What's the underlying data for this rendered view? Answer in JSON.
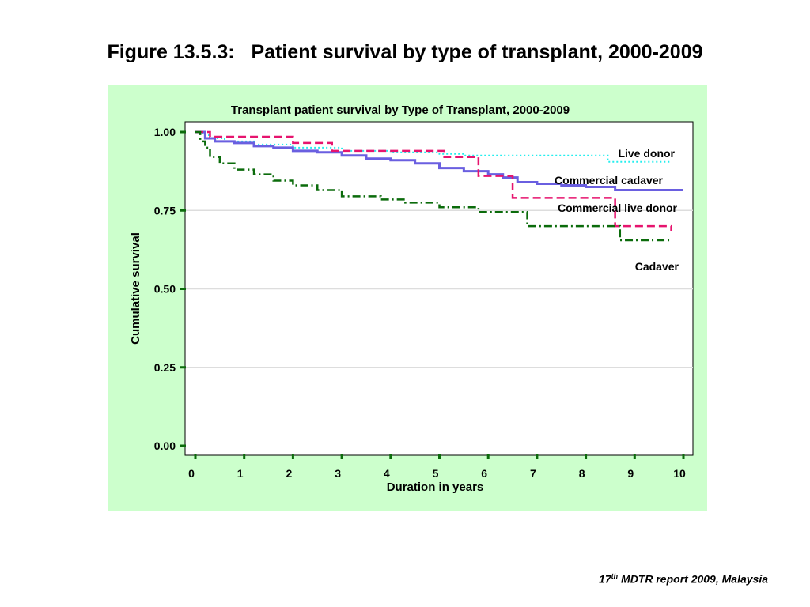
{
  "slide": {
    "title": "Figure 13.5.3:   Patient survival by type of transplant, 2000-2009",
    "footer_sup": "th",
    "footer_pre": "17",
    "footer_post": " MDTR report 2009, Malaysia"
  },
  "colors": {
    "panel_bg": "#ccffcc",
    "live_donor": "#22eeee",
    "commercial_cadaver": "#6a5fe0",
    "commercial_live_donor": "#e6146e",
    "cadaver": "#0b6b0b",
    "axis_ticks": "#0b6b0b"
  },
  "chart_data": {
    "type": "line",
    "title": "Transplant patient survival by Type of Transplant, 2000-2009",
    "xlabel": "Duration in years",
    "ylabel": "Cumulative survival",
    "xlim": [
      0,
      10
    ],
    "ylim": [
      0,
      1
    ],
    "x_ticks": [
      "0",
      "1",
      "2",
      "3",
      "4",
      "5",
      "6",
      "7",
      "8",
      "9",
      "10"
    ],
    "y_ticks": [
      "0.00",
      "0.25",
      "0.50",
      "0.75",
      "1.00"
    ],
    "grid": "horizontal",
    "step": true,
    "series": [
      {
        "name": "Live donor",
        "style": "dotted",
        "x": [
          0,
          0.15,
          0.3,
          0.6,
          1.2,
          2.0,
          3.0,
          4.0,
          5.0,
          5.5,
          8.45,
          9.75
        ],
        "y": [
          1.0,
          0.99,
          0.98,
          0.97,
          0.96,
          0.95,
          0.94,
          0.935,
          0.93,
          0.925,
          0.905,
          0.905
        ]
      },
      {
        "name": "Commercial cadaver",
        "style": "solid",
        "x": [
          0,
          0.2,
          0.4,
          0.8,
          1.2,
          1.6,
          2.0,
          2.5,
          3.0,
          3.5,
          4.0,
          4.5,
          5.0,
          5.5,
          6.0,
          6.3,
          6.6,
          7.0,
          7.5,
          8.0,
          8.6,
          9.0,
          10.0
        ],
        "y": [
          1.0,
          0.98,
          0.97,
          0.965,
          0.955,
          0.95,
          0.94,
          0.935,
          0.925,
          0.915,
          0.91,
          0.9,
          0.885,
          0.875,
          0.865,
          0.855,
          0.84,
          0.835,
          0.83,
          0.825,
          0.815,
          0.815,
          0.815
        ]
      },
      {
        "name": "Commercial live donor",
        "style": "dashed",
        "x": [
          0,
          0.3,
          2.0,
          2.8,
          5.1,
          5.8,
          6.5,
          8.6,
          9.75
        ],
        "y": [
          1.0,
          0.985,
          0.965,
          0.94,
          0.92,
          0.86,
          0.79,
          0.7,
          0.685
        ]
      },
      {
        "name": "Cadaver",
        "style": "dashdot",
        "x": [
          0,
          0.1,
          0.2,
          0.3,
          0.5,
          0.8,
          1.2,
          1.6,
          2.0,
          2.5,
          3.0,
          3.8,
          4.3,
          5.0,
          5.8,
          6.8,
          8.7,
          9.75
        ],
        "y": [
          1.0,
          0.97,
          0.95,
          0.92,
          0.9,
          0.88,
          0.865,
          0.845,
          0.83,
          0.815,
          0.795,
          0.785,
          0.775,
          0.76,
          0.745,
          0.7,
          0.655,
          0.655
        ]
      }
    ],
    "labels": [
      {
        "text": "Live donor",
        "series": "Live donor"
      },
      {
        "text": "Commercial cadaver",
        "series": "Commercial cadaver"
      },
      {
        "text": "Commercial live donor",
        "series": "Commercial live donor"
      },
      {
        "text": "Cadaver",
        "series": "Cadaver"
      }
    ]
  }
}
